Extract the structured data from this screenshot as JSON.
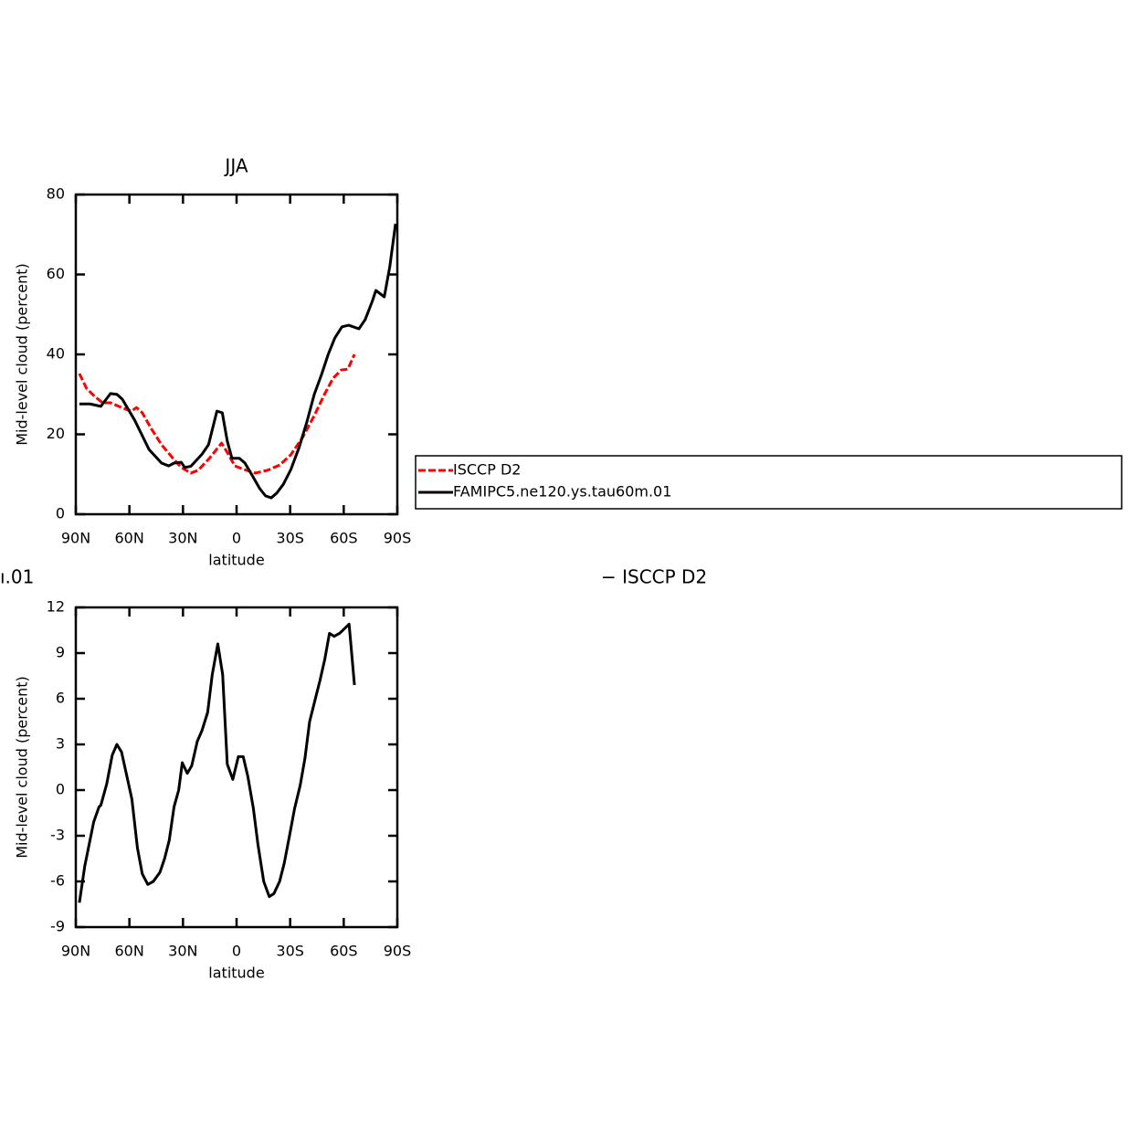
{
  "chart_data": [
    {
      "type": "line",
      "title": "JJA",
      "xlabel": "latitude",
      "ylabel": "Mid-level cloud (percent)",
      "xlim": [
        90,
        -90
      ],
      "ylim": [
        0,
        80
      ],
      "xticks": [
        {
          "value": 90,
          "label": "90N"
        },
        {
          "value": 60,
          "label": "60N"
        },
        {
          "value": 30,
          "label": "30N"
        },
        0,
        {
          "value": -30,
          "label": "30S"
        },
        {
          "value": -60,
          "label": "60S"
        },
        {
          "value": -90,
          "label": "90S"
        }
      ],
      "yticks": [
        0,
        20,
        40,
        60,
        80
      ],
      "series": [
        {
          "name": "ISCCP D2",
          "color": "#ff0000",
          "dashed": true,
          "x": [
            88,
            84,
            79,
            75,
            70.6,
            64.4,
            59,
            56,
            52.8,
            47.6,
            42,
            36,
            30.9,
            25.6,
            21.5,
            15.2,
            8.4,
            4.7,
            1,
            -4.2,
            -10.5,
            -17.3,
            -24.1,
            -30.4,
            -37.2,
            -43.5,
            -49.2,
            -54,
            -58.6,
            -62.3,
            -66
          ],
          "values": [
            35.2,
            31.5,
            29.3,
            27.9,
            27.9,
            26.7,
            25.8,
            26.7,
            25.4,
            21.3,
            17.4,
            14.2,
            11.7,
            10.3,
            11,
            14,
            17.8,
            15.1,
            12.1,
            11.2,
            10.3,
            11,
            12.3,
            14.9,
            19.4,
            24.7,
            30,
            34,
            36.1,
            36.3,
            40
          ]
        },
        {
          "name": "FAMIPC5.ne120.ys.tau60m.01",
          "color": "#000000",
          "dashed": false,
          "x": [
            88,
            82,
            76,
            70.6,
            67,
            64,
            57,
            49,
            42,
            38,
            35,
            31,
            29,
            25.6,
            19.4,
            15.7,
            11,
            8,
            5.2,
            2.6,
            -1.6,
            -4.7,
            -8.9,
            -13,
            -16.2,
            -19.4,
            -22.5,
            -26.2,
            -30.4,
            -35,
            -39.3,
            -43.5,
            -47.6,
            -51.3,
            -55,
            -59,
            -62.8,
            -68.5,
            -72,
            -75.9,
            -78,
            -82.7,
            -85.8,
            -89
          ],
          "values": [
            27.6,
            27.6,
            27,
            30.2,
            30,
            28.8,
            23.5,
            16.2,
            12.8,
            12.1,
            12.8,
            13,
            11.7,
            12,
            15,
            17.4,
            25.8,
            25.4,
            18.3,
            14,
            14,
            12.8,
            9.6,
            6.4,
            4.6,
            4.1,
            5.3,
            7.5,
            11.2,
            16.7,
            23,
            30,
            35,
            40,
            44.1,
            46.9,
            47.3,
            46.4,
            48.7,
            53.2,
            56,
            54.4,
            62,
            72.7
          ]
        }
      ]
    },
    {
      "type": "line",
      "title_parts": [
        "ı.01",
        "− ISCCP D2"
      ],
      "xlabel": "latitude",
      "ylabel": "Mid-level cloud (percent)",
      "xlim": [
        90,
        -90
      ],
      "ylim": [
        -9,
        12
      ],
      "xticks": [
        {
          "value": 90,
          "label": "90N"
        },
        {
          "value": 60,
          "label": "60N"
        },
        {
          "value": 30,
          "label": "30N"
        },
        0,
        {
          "value": -30,
          "label": "30S"
        },
        {
          "value": -60,
          "label": "60S"
        },
        {
          "value": -90,
          "label": "90S"
        }
      ],
      "yticks": [
        -9,
        -6,
        -3,
        0,
        3,
        6,
        9,
        12
      ],
      "series": [
        {
          "color": "#000000",
          "dashed": false,
          "x": [
            88,
            85,
            80,
            77,
            76,
            72.7,
            69.6,
            67,
            64.4,
            61.2,
            58.6,
            55.5,
            52.8,
            49.7,
            46.6,
            42.9,
            40.3,
            37.7,
            35,
            32.4,
            30.4,
            27.6,
            25.1,
            22,
            19.4,
            16.2,
            13.6,
            10.5,
            7.8,
            5.2,
            2.1,
            -1,
            -3.7,
            -6.3,
            -9.4,
            -12,
            -15.2,
            -18.3,
            -20.9,
            -24.1,
            -26.7,
            -29.8,
            -32.5,
            -35.6,
            -38.3,
            -40.9,
            -44.1,
            -46.7,
            -49.4,
            -52,
            -54.6,
            -57.7,
            -60.4,
            -63,
            -66
          ],
          "values": [
            -7.4,
            -5,
            -2.1,
            -1.1,
            -1,
            0.4,
            2.3,
            3,
            2.5,
            0.8,
            -0.6,
            -3.8,
            -5.5,
            -6.2,
            -6,
            -5.4,
            -4.5,
            -3.3,
            -1.1,
            0,
            1.8,
            1.1,
            1.6,
            3.2,
            3.9,
            5.1,
            7.6,
            9.6,
            7.6,
            1.7,
            0.7,
            2.2,
            2.2,
            0.9,
            -1.2,
            -3.6,
            -6,
            -7,
            -6.8,
            -6,
            -4.8,
            -2.9,
            -1.2,
            0.3,
            2.1,
            4.5,
            6,
            7.2,
            8.6,
            10.3,
            10.1,
            10.3,
            10.6,
            10.9,
            6.9
          ]
        }
      ]
    }
  ]
}
